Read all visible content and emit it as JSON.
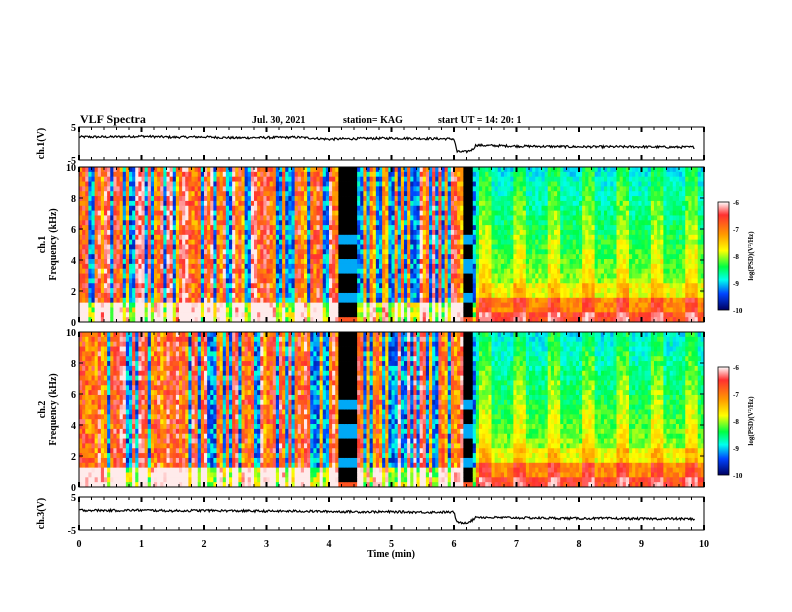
{
  "header": {
    "title": "VLF Spectra",
    "date": "Jul. 30, 2021",
    "station": "station= KAG",
    "start": "start  UT =  14: 20: 1"
  },
  "colors": {
    "palette": [
      "#ffffff",
      "#ffd0d0",
      "#ff2a00",
      "#ffaa00",
      "#ffff00",
      "#88ff44",
      "#00ff66",
      "#00ffdd",
      "#00aaff",
      "#0033ff",
      "#000080",
      "#000000"
    ]
  },
  "chart_data": [
    {
      "type": "line",
      "id": "ch1_waveform",
      "ylabel": "ch.1(V)",
      "ylim": [
        -5,
        5
      ],
      "yticks": [
        "5",
        "-5"
      ],
      "xlim": [
        0,
        10
      ],
      "series": [
        {
          "x": [
            0,
            0.5,
            1,
            1.5,
            2,
            2.5,
            3,
            3.5,
            4,
            4.5,
            5,
            5.5,
            6.0,
            6.05,
            6.2,
            6.3,
            6.35,
            6.5,
            7,
            7.5,
            8,
            8.5,
            9,
            9.5,
            9.85
          ],
          "values": [
            2.0,
            2.0,
            2.2,
            1.9,
            2.0,
            1.7,
            1.8,
            1.9,
            1.3,
            1.5,
            1.6,
            1.5,
            1.4,
            -2.5,
            -2.5,
            -1.8,
            -0.5,
            -0.6,
            -0.8,
            -0.9,
            -1.0,
            -1.0,
            -1.0,
            -1.1,
            -1.1
          ]
        }
      ]
    },
    {
      "type": "heatmap",
      "id": "ch1_spectrogram",
      "ylabel": "ch.1\nFrequency (kHz)",
      "ylim": [
        0,
        10
      ],
      "yticks": [
        "10",
        "8",
        "6",
        "4",
        "2",
        "0"
      ],
      "xlim": [
        0,
        10
      ],
      "colorbar": {
        "min": -10,
        "max": -6,
        "ticks": [
          "-6",
          "-7",
          "-8",
          "-9",
          "-10"
        ],
        "label": "log(PSD)(V²/Hz)"
      },
      "features": {
        "gaps": [
          [
            4.15,
            4.45
          ],
          [
            6.15,
            6.3
          ]
        ],
        "tones_khz": [
          1.6,
          3.6,
          5.3
        ]
      }
    },
    {
      "type": "heatmap",
      "id": "ch2_spectrogram",
      "ylabel": "ch.2\nFrequency (kHz)",
      "ylim": [
        0,
        10
      ],
      "yticks": [
        "10",
        "8",
        "6",
        "4",
        "2",
        "0"
      ],
      "xlim": [
        0,
        10
      ],
      "colorbar": {
        "min": -10,
        "max": -6,
        "ticks": [
          "-6",
          "-7",
          "-8",
          "-9",
          "-10"
        ],
        "label": "log(PSD)(V²/Hz)"
      },
      "features": {
        "gaps": [
          [
            4.15,
            4.45
          ],
          [
            6.15,
            6.3
          ]
        ],
        "tones_khz": [
          1.6,
          3.6,
          5.3
        ]
      }
    },
    {
      "type": "line",
      "id": "ch3_waveform",
      "ylabel": "ch.3(V)",
      "ylim": [
        -5,
        5
      ],
      "yticks": [
        "5",
        "-5"
      ],
      "xlim": [
        0,
        10
      ],
      "xlabel": "Time (min)",
      "xticks": [
        "0",
        "1",
        "2",
        "3",
        "4",
        "5",
        "6",
        "7",
        "8",
        "9",
        "10"
      ],
      "series": [
        {
          "x": [
            0,
            0.5,
            1,
            1.5,
            2,
            2.5,
            3,
            3.5,
            4,
            4.5,
            5,
            5.5,
            6.0,
            6.05,
            6.2,
            6.3,
            6.35,
            6.5,
            7,
            7.5,
            8,
            8.5,
            9,
            9.5,
            9.85
          ],
          "values": [
            1.0,
            0.9,
            1.0,
            0.8,
            0.9,
            0.8,
            0.7,
            0.7,
            0.6,
            0.5,
            0.5,
            0.4,
            0.4,
            -2.8,
            -2.8,
            -2.0,
            -1.0,
            -1.2,
            -1.3,
            -1.4,
            -1.5,
            -1.5,
            -1.6,
            -1.6,
            -1.7
          ]
        }
      ]
    }
  ]
}
